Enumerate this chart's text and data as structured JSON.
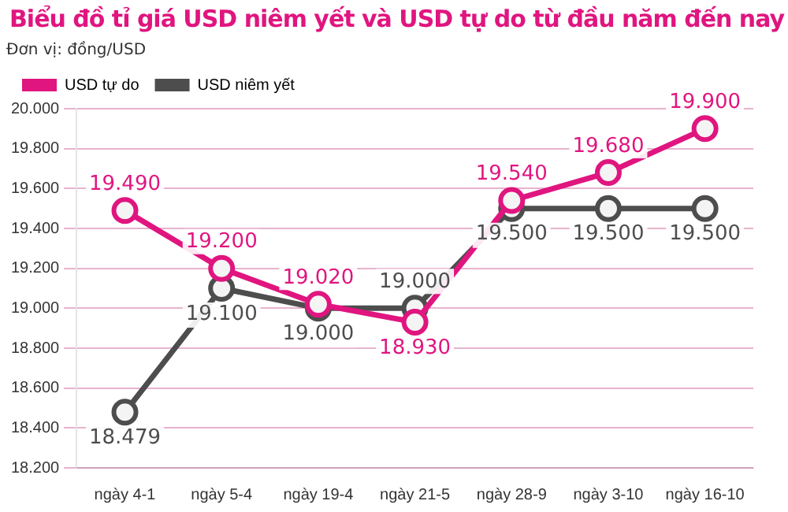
{
  "chart_data": {
    "type": "line",
    "title": "Biểu đồ tỉ giá USD niêm yết và USD tự do từ đầu năm đến nay",
    "ylabel": "Đơn vị: đồng/USD",
    "categories": [
      "ngày 4-1",
      "ngày 5-4",
      "ngày 19-4",
      "ngày 21-5",
      "ngày 28-9",
      "ngày 3-10",
      "ngày 16-10"
    ],
    "series": [
      {
        "name": "USD tự do",
        "color": "#e0157f",
        "values": [
          19490,
          19200,
          19020,
          18930,
          19540,
          19680,
          19900
        ],
        "value_labels": [
          "19.490",
          "19.200",
          "19.020",
          "18.930",
          "19.540",
          "19.680",
          "19.900"
        ]
      },
      {
        "name": "USD niêm yết",
        "color": "#4d4d4d",
        "values": [
          18479,
          19100,
          19000,
          19000,
          19500,
          19500,
          19500
        ],
        "value_labels": [
          "18.479",
          "19.100",
          "19.000",
          "19.000",
          "19.500",
          "19.500",
          "19.500"
        ]
      }
    ],
    "ylim": [
      18200,
      20000
    ],
    "yticks": [
      {
        "value": 18200,
        "label": "18.200"
      },
      {
        "value": 18400,
        "label": "18.400"
      },
      {
        "value": 18600,
        "label": "18.600"
      },
      {
        "value": 18800,
        "label": "18.800"
      },
      {
        "value": 19000,
        "label": "19.000"
      },
      {
        "value": 19200,
        "label": "19.200"
      },
      {
        "value": 19400,
        "label": "19.400"
      },
      {
        "value": 19600,
        "label": "19.600"
      },
      {
        "value": 19800,
        "label": "19.800"
      },
      {
        "value": 20000,
        "label": "20.000"
      }
    ],
    "grid": "y",
    "legend": "top left",
    "marker": "circle",
    "line_style": "solid"
  }
}
